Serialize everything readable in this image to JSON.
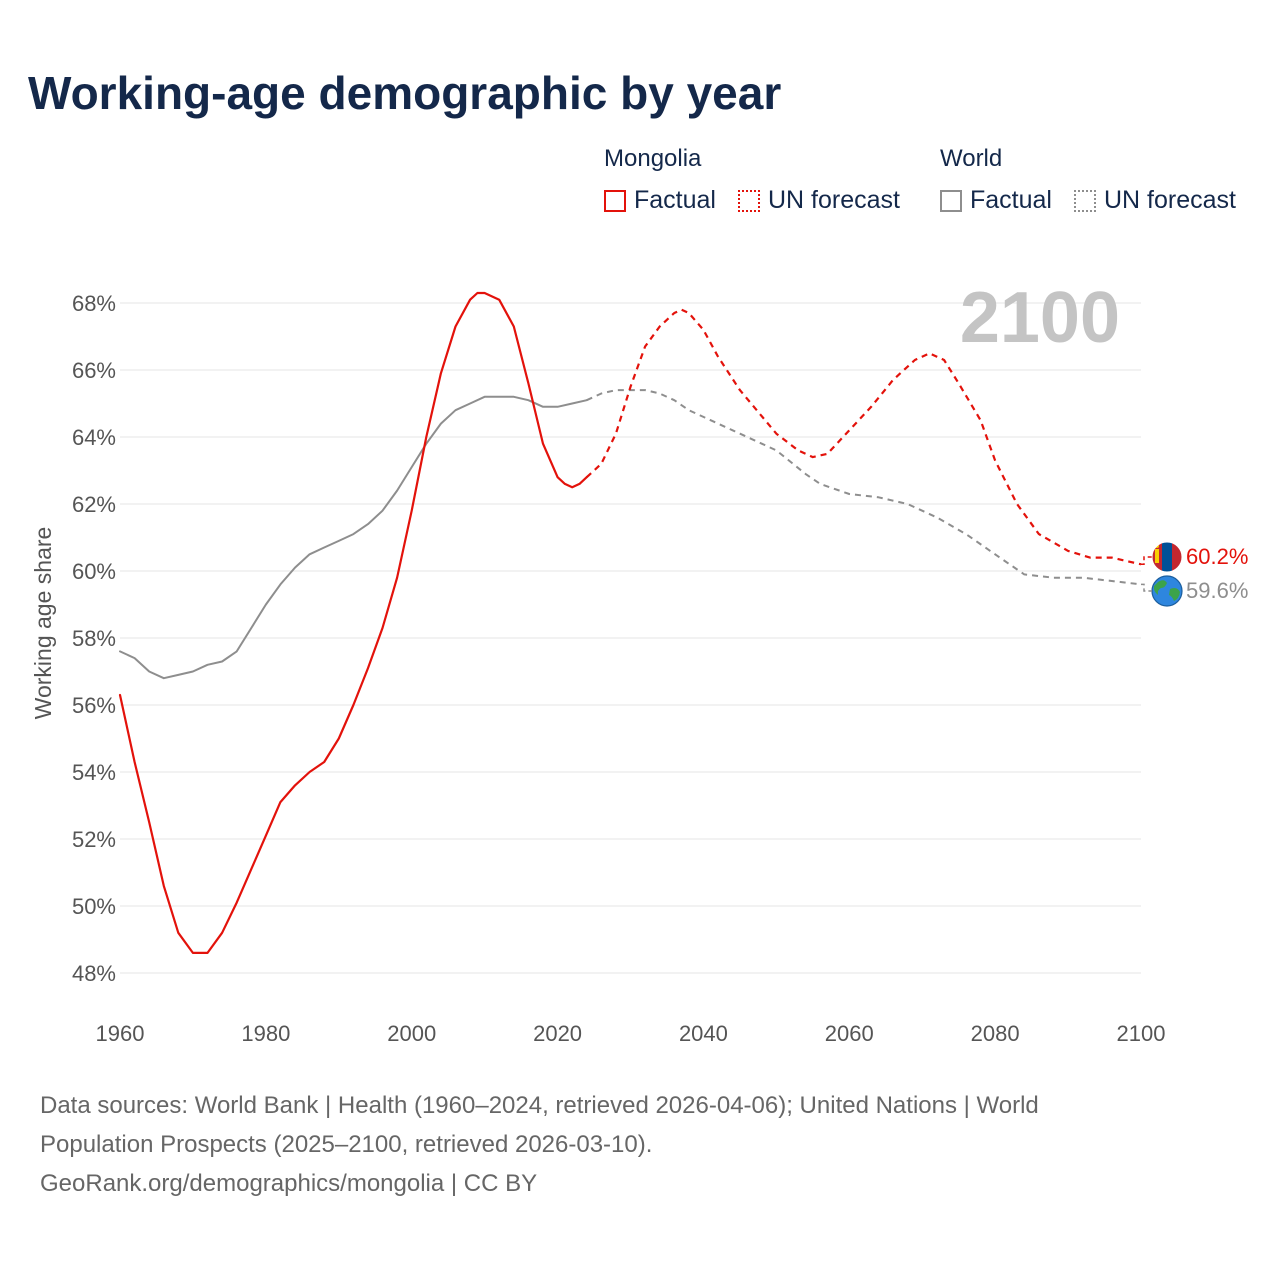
{
  "title": "Working-age demographic by year",
  "legend": {
    "groups": [
      {
        "name": "Mongolia",
        "items": [
          {
            "label": "Factual"
          },
          {
            "label": "UN forecast"
          }
        ]
      },
      {
        "name": "World",
        "items": [
          {
            "label": "Factual"
          },
          {
            "label": "UN forecast"
          }
        ]
      }
    ]
  },
  "colors": {
    "mongolia": "#e3120b",
    "world": "#8e8e8e",
    "grid": "#e6e6e6",
    "tick": "#555555",
    "year": "#c4c4c4"
  },
  "year_label": "2100",
  "end_labels": {
    "mongolia": "60.2%",
    "world": "59.6%"
  },
  "icons": {
    "mongolia": "mongolia-flag-icon",
    "world": "globe-icon"
  },
  "footer": {
    "sources": "Data sources: World Bank | Health (1960–2024, retrieved 2026-04-06); United Nations | World Population Prospects (2025–2100, retrieved 2026-03-10).",
    "credit": "GeoRank.org/demographics/mongolia | CC BY"
  },
  "chart_data": {
    "type": "line",
    "title": "Working-age demographic by year",
    "xlabel": "",
    "ylabel": "Working age share",
    "xlim": [
      1960,
      2100
    ],
    "ylim": [
      47.5,
      69
    ],
    "xticks": [
      1960,
      1980,
      2000,
      2020,
      2040,
      2060,
      2080,
      2100
    ],
    "xtick_labels": [
      "1960",
      "1980",
      "2000",
      "2020",
      "2040",
      "2060",
      "2080",
      "2100"
    ],
    "yticks": [
      48,
      50,
      52,
      54,
      56,
      58,
      60,
      62,
      64,
      66,
      68
    ],
    "ytick_labels": [
      "48%",
      "50%",
      "52%",
      "54%",
      "56%",
      "58%",
      "60%",
      "62%",
      "64%",
      "66%",
      "68%"
    ],
    "series": [
      {
        "name": "Mongolia",
        "segment": "Factual",
        "style": "solid",
        "x": [
          1960,
          1962,
          1964,
          1966,
          1968,
          1970,
          1972,
          1974,
          1976,
          1978,
          1980,
          1982,
          1984,
          1986,
          1988,
          1990,
          1992,
          1994,
          1996,
          1998,
          2000,
          2002,
          2004,
          2006,
          2008,
          2009,
          2010,
          2012,
          2014,
          2016,
          2018,
          2020,
          2021,
          2022,
          2023,
          2024
        ],
        "y": [
          56.3,
          54.3,
          52.5,
          50.6,
          49.2,
          48.6,
          48.6,
          49.2,
          50.1,
          51.1,
          52.1,
          53.1,
          53.6,
          54.0,
          54.3,
          55.0,
          56.0,
          57.1,
          58.3,
          59.8,
          61.8,
          64.0,
          65.9,
          67.3,
          68.1,
          68.3,
          68.3,
          68.1,
          67.3,
          65.6,
          63.8,
          62.8,
          62.6,
          62.5,
          62.6,
          62.8
        ]
      },
      {
        "name": "Mongolia",
        "segment": "UN forecast",
        "style": "dashed",
        "x": [
          2024,
          2026,
          2028,
          2030,
          2032,
          2034,
          2036,
          2037,
          2038,
          2040,
          2042,
          2045,
          2050,
          2053,
          2055,
          2057,
          2060,
          2063,
          2066,
          2069,
          2071,
          2073,
          2075,
          2078,
          2080,
          2083,
          2086,
          2090,
          2093,
          2096,
          2098,
          2100
        ],
        "y": [
          62.8,
          63.2,
          64.1,
          65.5,
          66.7,
          67.3,
          67.7,
          67.8,
          67.7,
          67.2,
          66.4,
          65.4,
          64.1,
          63.6,
          63.4,
          63.5,
          64.2,
          64.9,
          65.7,
          66.3,
          66.5,
          66.3,
          65.6,
          64.5,
          63.3,
          62.0,
          61.1,
          60.6,
          60.4,
          60.4,
          60.3,
          60.2
        ]
      },
      {
        "name": "World",
        "segment": "Factual",
        "style": "solid",
        "x": [
          1960,
          1962,
          1964,
          1966,
          1968,
          1970,
          1972,
          1974,
          1976,
          1978,
          1980,
          1982,
          1984,
          1986,
          1988,
          1990,
          1992,
          1994,
          1996,
          1998,
          2000,
          2002,
          2004,
          2006,
          2008,
          2010,
          2012,
          2014,
          2016,
          2018,
          2020,
          2022,
          2024
        ],
        "y": [
          57.6,
          57.4,
          57.0,
          56.8,
          56.9,
          57.0,
          57.2,
          57.3,
          57.6,
          58.3,
          59.0,
          59.6,
          60.1,
          60.5,
          60.7,
          60.9,
          61.1,
          61.4,
          61.8,
          62.4,
          63.1,
          63.8,
          64.4,
          64.8,
          65.0,
          65.2,
          65.2,
          65.2,
          65.1,
          64.9,
          64.9,
          65.0,
          65.1
        ]
      },
      {
        "name": "World",
        "segment": "UN forecast",
        "style": "dashed",
        "x": [
          2024,
          2026,
          2028,
          2032,
          2034,
          2036,
          2038,
          2040,
          2044,
          2048,
          2050,
          2054,
          2056,
          2060,
          2064,
          2068,
          2072,
          2076,
          2080,
          2084,
          2088,
          2092,
          2096,
          2100
        ],
        "y": [
          65.1,
          65.3,
          65.4,
          65.4,
          65.3,
          65.1,
          64.8,
          64.6,
          64.2,
          63.8,
          63.6,
          62.9,
          62.6,
          62.3,
          62.2,
          62.0,
          61.6,
          61.1,
          60.5,
          59.9,
          59.8,
          59.8,
          59.7,
          59.6
        ]
      }
    ]
  }
}
